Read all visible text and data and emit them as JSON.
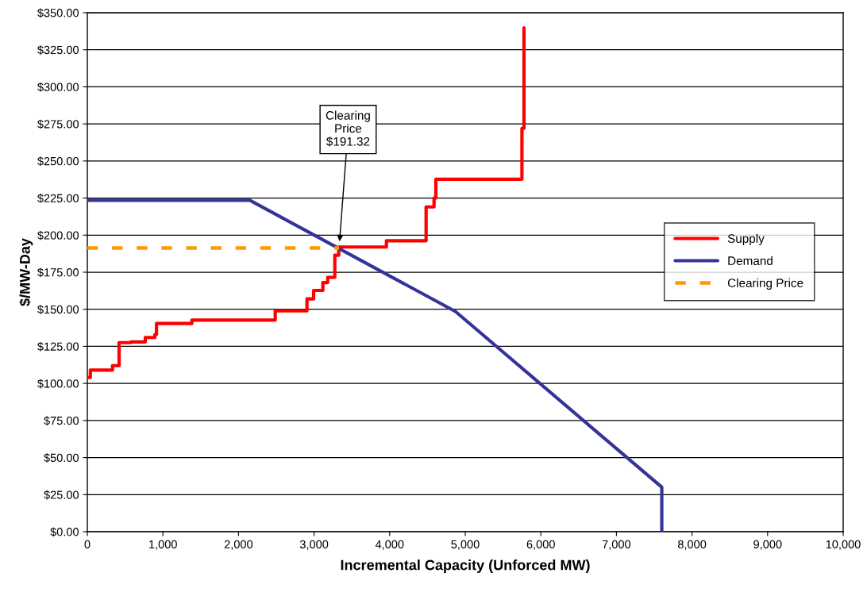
{
  "chart_data": {
    "type": "line",
    "xlabel": "Incremental Capacity (Unforced MW)",
    "ylabel": "$/MW-Day",
    "xlim": [
      0,
      10000
    ],
    "ylim": [
      0,
      350
    ],
    "xticks": [
      0,
      {
        "value": 1000,
        "label": "1,000"
      },
      {
        "value": 2000,
        "label": "2,000"
      },
      {
        "value": 3000,
        "label": "3,000"
      },
      {
        "value": 4000,
        "label": "4,000"
      },
      {
        "value": 5000,
        "label": "5,000"
      },
      {
        "value": 6000,
        "label": "6,000"
      },
      {
        "value": 7000,
        "label": "7,000"
      },
      {
        "value": 8000,
        "label": "8,000"
      },
      {
        "value": 9000,
        "label": "9,000"
      },
      {
        "value": 10000,
        "label": "10,000"
      }
    ],
    "yticks": [
      {
        "value": 0,
        "label": "$0.00"
      },
      {
        "value": 25,
        "label": "$25.00"
      },
      {
        "value": 50,
        "label": "$50.00"
      },
      {
        "value": 75,
        "label": "$75.00"
      },
      {
        "value": 100,
        "label": "$100.00"
      },
      {
        "value": 125,
        "label": "$125.00"
      },
      {
        "value": 150,
        "label": "$150.00"
      },
      {
        "value": 175,
        "label": "$175.00"
      },
      {
        "value": 200,
        "label": "$200.00"
      },
      {
        "value": 225,
        "label": "$225.00"
      },
      {
        "value": 250,
        "label": "$250.00"
      },
      {
        "value": 275,
        "label": "$275.00"
      },
      {
        "value": 300,
        "label": "$300.00"
      },
      {
        "value": 325,
        "label": "$325.00"
      },
      {
        "value": 350,
        "label": "$350.00"
      }
    ],
    "grid": "y",
    "legend": "right",
    "marker": "none",
    "series": [
      {
        "name": "Supply",
        "color": "#ff0000",
        "line_style": "solid",
        "x": [
          20,
          20,
          40,
          40,
          333,
          333,
          420,
          420,
          578,
          578,
          767,
          767,
          893,
          893,
          915,
          915,
          1383,
          1383,
          2486,
          2486,
          2906,
          2906,
          2994,
          2994,
          3116,
          3116,
          3180,
          3180,
          3274,
          3274,
          3326,
          3326,
          3957,
          3957,
          4482,
          4482,
          4587,
          4587,
          4611,
          4611,
          5750,
          5750,
          5777,
          5777
        ],
        "values": [
          104,
          104,
          104,
          109,
          109,
          112,
          112,
          127.5,
          127.5,
          128,
          128,
          131,
          131,
          133,
          133,
          140.4,
          140.4,
          142.7,
          142.7,
          149,
          149,
          157,
          157,
          162.7,
          162.7,
          168,
          168,
          171.5,
          171.5,
          186.4,
          186.4,
          192,
          192,
          196.2,
          196.2,
          219,
          219,
          225,
          225,
          237.7,
          237.7,
          272,
          272,
          339.8
        ]
      },
      {
        "name": "Demand",
        "color": "#333399",
        "line_style": "solid",
        "x": [
          0,
          2150,
          4870,
          7600,
          7600
        ],
        "values": [
          223.5,
          223.5,
          148.5,
          30,
          0
        ]
      },
      {
        "name": "Clearing Price",
        "color": "#ff9900",
        "line_style": "dashed",
        "x": [
          0,
          3330
        ],
        "values": [
          191.32,
          191.32
        ]
      }
    ],
    "annotations": [
      "Clearing\nPrice\n$191.32"
    ]
  }
}
